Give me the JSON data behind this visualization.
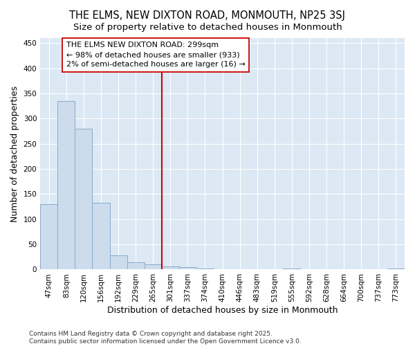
{
  "title": "THE ELMS, NEW DIXTON ROAD, MONMOUTH, NP25 3SJ",
  "subtitle": "Size of property relative to detached houses in Monmouth",
  "xlabel": "Distribution of detached houses by size in Monmouth",
  "ylabel": "Number of detached properties",
  "categories": [
    "47sqm",
    "83sqm",
    "120sqm",
    "156sqm",
    "192sqm",
    "229sqm",
    "265sqm",
    "301sqm",
    "337sqm",
    "374sqm",
    "410sqm",
    "446sqm",
    "483sqm",
    "519sqm",
    "555sqm",
    "592sqm",
    "628sqm",
    "664sqm",
    "700sqm",
    "737sqm",
    "773sqm"
  ],
  "values": [
    130,
    335,
    280,
    133,
    28,
    15,
    10,
    6,
    5,
    2,
    0,
    0,
    0,
    0,
    2,
    0,
    0,
    0,
    0,
    0,
    2
  ],
  "bar_color": "#ccdcec",
  "bar_edge_color": "#88aacc",
  "vline_index": 7,
  "vline_color": "#cc0000",
  "annotation_text": "THE ELMS NEW DIXTON ROAD: 299sqm\n← 98% of detached houses are smaller (933)\n2% of semi-detached houses are larger (16) →",
  "annotation_box_facecolor": "#ffffff",
  "annotation_box_edgecolor": "#cc0000",
  "ylim": [
    0,
    460
  ],
  "yticks": [
    0,
    50,
    100,
    150,
    200,
    250,
    300,
    350,
    400,
    450
  ],
  "plot_bg_color": "#dce8f4",
  "fig_bg_color": "#ffffff",
  "grid_color": "#ffffff",
  "footer_line1": "Contains HM Land Registry data © Crown copyright and database right 2025.",
  "footer_line2": "Contains public sector information licensed under the Open Government Licence v3.0.",
  "title_fontsize": 10.5,
  "subtitle_fontsize": 9.5,
  "label_fontsize": 9,
  "tick_fontsize": 7.5,
  "annotation_fontsize": 8,
  "footer_fontsize": 6.5
}
